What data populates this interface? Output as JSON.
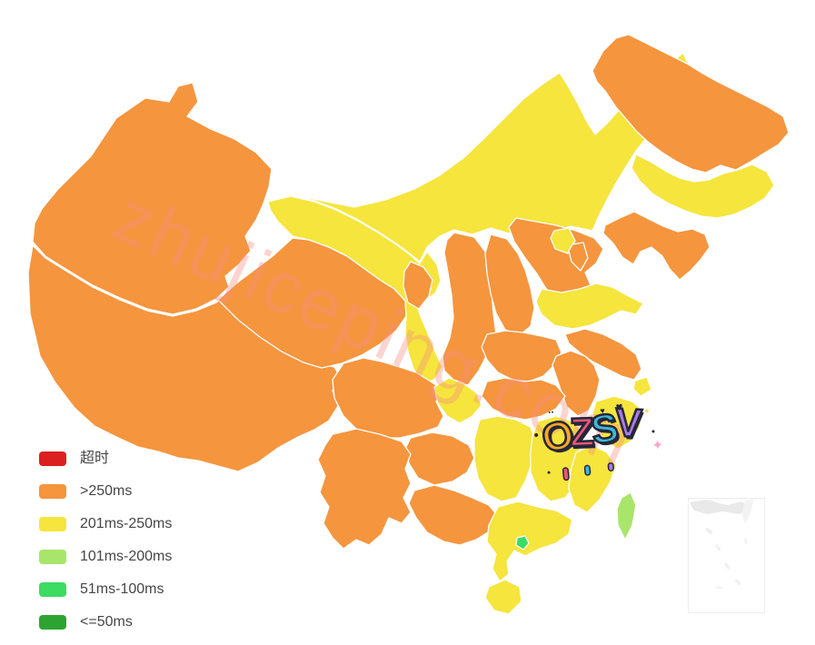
{
  "page": {
    "background": "#ffffff"
  },
  "legend": {
    "items": [
      {
        "key": "timeout",
        "label": "超时",
        "color": "#DC1F1F"
      },
      {
        "key": "gt250",
        "label": ">250ms",
        "color": "#F5953E"
      },
      {
        "key": "ms201_250",
        "label": "201ms-250ms",
        "color": "#F5E53D"
      },
      {
        "key": "ms101_200",
        "label": "101ms-200ms",
        "color": "#A9E56A"
      },
      {
        "key": "ms51_100",
        "label": "51ms-100ms",
        "color": "#3CDB62"
      },
      {
        "key": "le50",
        "label": "<=50ms",
        "color": "#2DA432"
      }
    ]
  },
  "watermark": {
    "text": "zhujiceping.com"
  },
  "logo": {
    "text": "OZSV",
    "letters": [
      {
        "char": "O",
        "color": "#F7A824"
      },
      {
        "char": "Z",
        "color": "#EE5577"
      },
      {
        "char": "S",
        "color": "#3BB9D8"
      },
      {
        "char": "V",
        "color": "#A97AE8"
      }
    ]
  },
  "map": {
    "border_color": "#ffffff",
    "regions": [
      {
        "id": "xinjiang",
        "category": "gt250"
      },
      {
        "id": "xizang",
        "category": "gt250"
      },
      {
        "id": "neimenggu",
        "category": "ms201_250"
      },
      {
        "id": "qinghai",
        "category": "gt250"
      },
      {
        "id": "gansu",
        "category": "ms201_250"
      },
      {
        "id": "ningxia",
        "category": "gt250"
      },
      {
        "id": "heilongjiang",
        "category": "gt250"
      },
      {
        "id": "jilin",
        "category": "ms201_250"
      },
      {
        "id": "liaoning",
        "category": "gt250"
      },
      {
        "id": "shaanxi",
        "category": "gt250"
      },
      {
        "id": "shanxi",
        "category": "gt250"
      },
      {
        "id": "hebei",
        "category": "gt250"
      },
      {
        "id": "beijing",
        "category": "ms201_250"
      },
      {
        "id": "tianjin",
        "category": "gt250"
      },
      {
        "id": "shandong",
        "category": "ms201_250"
      },
      {
        "id": "henan",
        "category": "gt250"
      },
      {
        "id": "jiangsu",
        "category": "gt250"
      },
      {
        "id": "anhui",
        "category": "gt250"
      },
      {
        "id": "shanghai",
        "category": "ms201_250"
      },
      {
        "id": "hubei",
        "category": "gt250"
      },
      {
        "id": "sichuan",
        "category": "gt250"
      },
      {
        "id": "chongqing",
        "category": "ms201_250"
      },
      {
        "id": "guizhou",
        "category": "gt250"
      },
      {
        "id": "yunnan",
        "category": "gt250"
      },
      {
        "id": "guangxi",
        "category": "gt250"
      },
      {
        "id": "hunan",
        "category": "ms201_250"
      },
      {
        "id": "jiangxi",
        "category": "ms201_250"
      },
      {
        "id": "zhejiang",
        "category": "ms201_250"
      },
      {
        "id": "fujian",
        "category": "ms201_250"
      },
      {
        "id": "guangdong",
        "category": "ms201_250"
      },
      {
        "id": "hainan",
        "category": "ms201_250"
      },
      {
        "id": "taiwan",
        "category": "ms101_200"
      },
      {
        "id": "hongkong",
        "category": "ms51_100"
      }
    ]
  }
}
